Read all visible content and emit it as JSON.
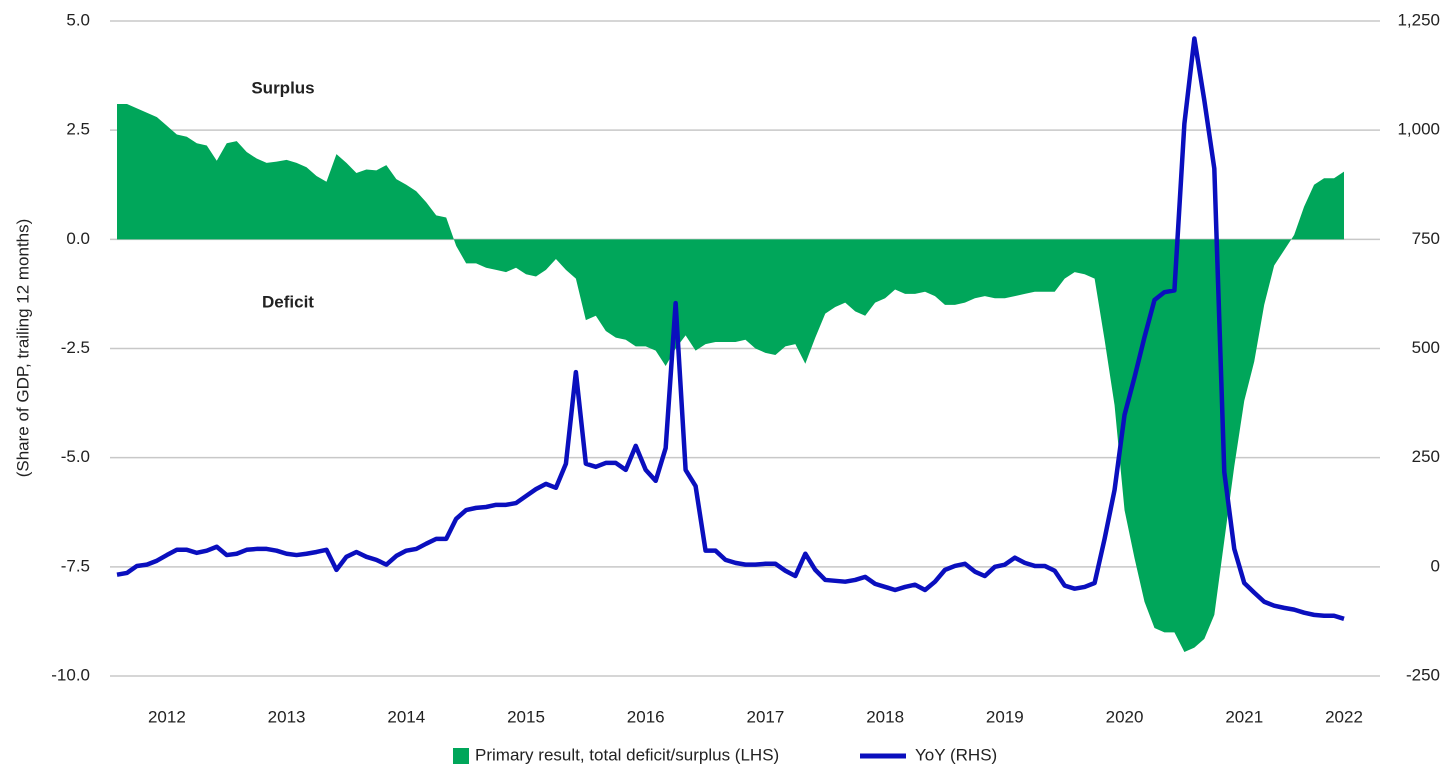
{
  "chart_data": {
    "type": "line",
    "y_label": "(Share of GDP, trailing 12 months)",
    "annotations": [
      "Surplus",
      "Deficit"
    ],
    "categories": [
      null,
      null,
      null,
      null,
      null,
      "2012",
      null,
      null,
      null,
      null,
      null,
      null,
      null,
      null,
      null,
      null,
      null,
      "2013",
      null,
      null,
      null,
      null,
      null,
      null,
      null,
      null,
      null,
      null,
      null,
      "2014",
      null,
      null,
      null,
      null,
      null,
      null,
      null,
      null,
      null,
      null,
      null,
      "2015",
      null,
      null,
      null,
      null,
      null,
      null,
      null,
      null,
      null,
      null,
      null,
      "2016",
      null,
      null,
      null,
      null,
      null,
      null,
      null,
      null,
      null,
      null,
      null,
      "2017",
      null,
      null,
      null,
      null,
      null,
      null,
      null,
      null,
      null,
      null,
      null,
      "2018",
      null,
      null,
      null,
      null,
      null,
      null,
      null,
      null,
      null,
      null,
      null,
      "2019",
      null,
      null,
      null,
      null,
      null,
      null,
      null,
      null,
      null,
      null,
      null,
      "2020",
      null,
      null,
      null,
      null,
      null,
      null,
      null,
      null,
      null,
      null,
      null,
      "2021",
      null,
      null,
      null,
      null,
      null,
      null,
      null,
      null,
      null,
      "2022"
    ],
    "series": [
      {
        "name": "Primary result, total deficit/surplus (LHS)",
        "type": "area",
        "color": "#00a65a",
        "values": [
          3.1,
          3.1,
          3.0,
          2.9,
          2.8,
          2.6,
          2.4,
          2.35,
          2.2,
          2.15,
          1.8,
          2.2,
          2.25,
          2.0,
          1.85,
          1.75,
          1.78,
          1.82,
          1.75,
          1.65,
          1.45,
          1.32,
          1.95,
          1.75,
          1.52,
          1.6,
          1.58,
          1.7,
          1.38,
          1.25,
          1.1,
          0.85,
          0.55,
          0.5,
          -0.15,
          -0.55,
          -0.55,
          -0.65,
          -0.7,
          -0.75,
          -0.65,
          -0.8,
          -0.85,
          -0.7,
          -0.45,
          -0.7,
          -0.9,
          -1.85,
          -1.75,
          -2.1,
          -2.25,
          -2.3,
          -2.45,
          -2.45,
          -2.55,
          -2.9,
          -2.5,
          -2.2,
          -2.55,
          -2.4,
          -2.35,
          -2.35,
          -2.35,
          -2.3,
          -2.5,
          -2.6,
          -2.65,
          -2.45,
          -2.4,
          -2.85,
          -2.25,
          -1.7,
          -1.55,
          -1.45,
          -1.65,
          -1.75,
          -1.45,
          -1.35,
          -1.15,
          -1.25,
          -1.25,
          -1.2,
          -1.3,
          -1.5,
          -1.5,
          -1.45,
          -1.35,
          -1.3,
          -1.35,
          -1.35,
          -1.3,
          -1.25,
          -1.2,
          -1.2,
          -1.2,
          -0.9,
          -0.75,
          -0.8,
          -0.9,
          -2.3,
          -3.8,
          -6.2,
          -7.3,
          -8.3,
          -8.9,
          -9.0,
          -9.0,
          -9.45,
          -9.35,
          -9.15,
          -8.6,
          -6.9,
          -5.2,
          -3.7,
          -2.8,
          -1.5,
          -0.6,
          -0.25,
          0.1,
          0.75,
          1.25,
          1.4,
          1.4,
          1.55
        ]
      },
      {
        "name": "YoY (RHS)",
        "type": "line",
        "axis": "y2",
        "color": "#0a0fbe",
        "values": [
          -18,
          -14,
          2,
          5,
          14,
          27,
          39,
          39,
          32,
          37,
          46,
          27,
          30,
          39,
          41,
          41,
          37,
          30,
          27,
          30,
          34,
          39,
          -7,
          23,
          34,
          23,
          16,
          5,
          25,
          37,
          41,
          53,
          64,
          64,
          110,
          130,
          135,
          137,
          142,
          142,
          146,
          162,
          178,
          190,
          181,
          236,
          446,
          236,
          229,
          238,
          238,
          222,
          277,
          222,
          197,
          272,
          604,
          222,
          185,
          37,
          37,
          16,
          9,
          5,
          5,
          7,
          7,
          -9,
          -21,
          30,
          -7,
          -30,
          -32,
          -34,
          -30,
          -23,
          -39,
          -46,
          -53,
          -46,
          -41,
          -53,
          -34,
          -7,
          2,
          7,
          -11,
          -21,
          0,
          5,
          21,
          9,
          2,
          2,
          -9,
          -43,
          -50,
          -46,
          -37,
          64,
          176,
          348,
          434,
          526,
          611,
          629,
          633,
          1015,
          1210,
          1068,
          912,
          217,
          41,
          -37,
          -59,
          -80,
          -89,
          -94,
          -98,
          -105,
          -110,
          -112,
          -112,
          -119
        ]
      }
    ],
    "ylim": [
      -10,
      5
    ],
    "yticks": [
      {
        "value": -10,
        "label": "-10.0"
      },
      -7.5,
      {
        "value": -5,
        "label": "-5.0"
      },
      -2.5,
      {
        "value": 0,
        "label": "0.0"
      },
      2.5,
      {
        "value": 5,
        "label": "5.0"
      }
    ],
    "y2lim": [
      -250,
      1250
    ],
    "y2ticks": [
      -250,
      0,
      250,
      500,
      750,
      {
        "value": 1000,
        "label": "1,000"
      },
      {
        "value": 1250,
        "label": "1,250"
      }
    ],
    "grid": true
  }
}
